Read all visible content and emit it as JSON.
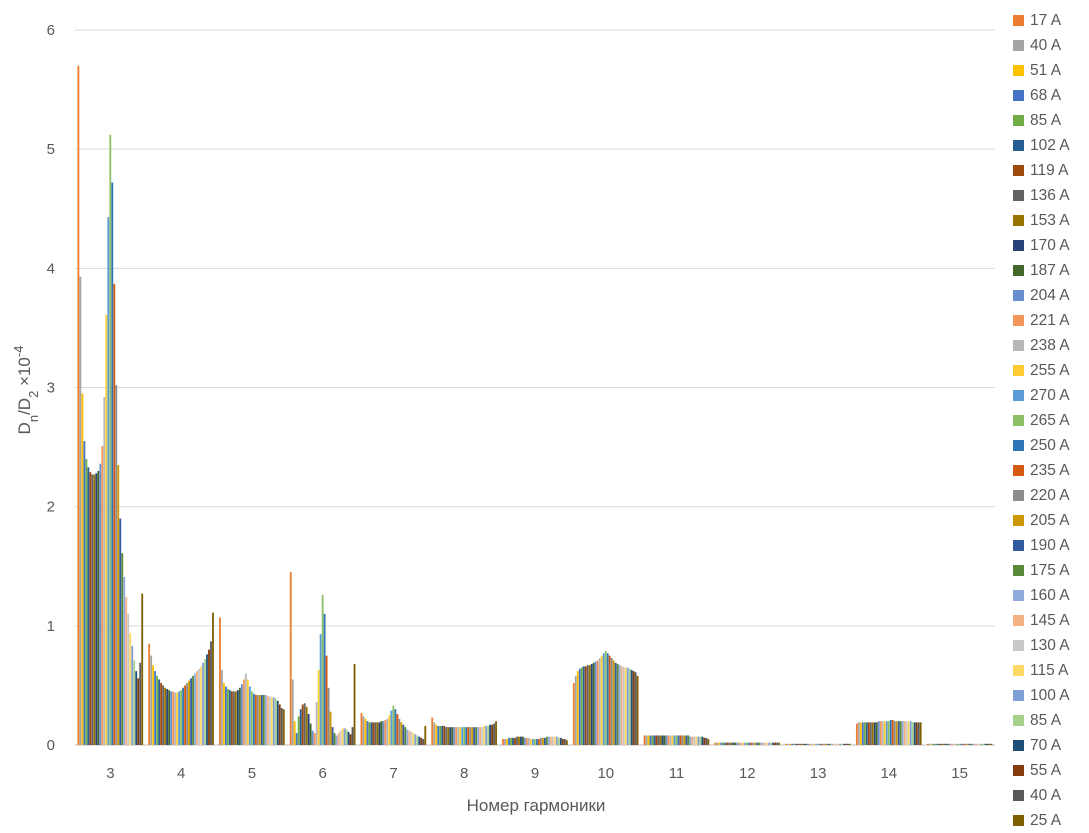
{
  "chart_data": {
    "type": "bar",
    "title": "",
    "xlabel": "Номер гармоники",
    "ylabel_main": "D",
    "ylabel_sub1": "n",
    "ylabel_mid": "/D",
    "ylabel_sub2": "2",
    "ylabel_times": " ×10",
    "ylabel_exp": "-4",
    "ylim": [
      0,
      6
    ],
    "yticks": [
      "0",
      "1",
      "2",
      "3",
      "4",
      "5",
      "6"
    ],
    "categories": [
      "3",
      "4",
      "5",
      "6",
      "7",
      "8",
      "9",
      "10",
      "11",
      "12",
      "13",
      "14",
      "15"
    ],
    "grid": true,
    "legend_position": "right",
    "legend": [
      {
        "name": "17 A",
        "color": "#ED7D31"
      },
      {
        "name": "40 A",
        "color": "#A5A5A5"
      },
      {
        "name": "51 A",
        "color": "#FFC000"
      },
      {
        "name": "68 A",
        "color": "#4472C4"
      },
      {
        "name": "85 A",
        "color": "#70AD47"
      },
      {
        "name": "102 A",
        "color": "#255E91"
      },
      {
        "name": "119 A",
        "color": "#9E480E"
      },
      {
        "name": "136 A",
        "color": "#636363"
      },
      {
        "name": "153 A",
        "color": "#997300"
      },
      {
        "name": "170 A",
        "color": "#264478"
      },
      {
        "name": "187 A",
        "color": "#43682B"
      },
      {
        "name": "204 A",
        "color": "#698ED0"
      },
      {
        "name": "221 A",
        "color": "#F1975A"
      },
      {
        "name": "238 A",
        "color": "#B7B7B7"
      },
      {
        "name": "255 A",
        "color": "#FFCD33"
      },
      {
        "name": "270 A",
        "color": "#5B9BD5"
      },
      {
        "name": "265 A",
        "color": "#8CC168"
      },
      {
        "name": "250 A",
        "color": "#2E75B6"
      },
      {
        "name": "235 A",
        "color": "#D55A11"
      },
      {
        "name": "220 A",
        "color": "#8C8C8C"
      },
      {
        "name": "205 A",
        "color": "#CC9A00"
      },
      {
        "name": "190 A",
        "color": "#335AA1"
      },
      {
        "name": "175 A",
        "color": "#5A8A39"
      },
      {
        "name": "160 A",
        "color": "#8FAADC"
      },
      {
        "name": "145 A",
        "color": "#F4B183"
      },
      {
        "name": "130 A",
        "color": "#C9C9C9"
      },
      {
        "name": "115 A",
        "color": "#FFD966"
      },
      {
        "name": "100 A",
        "color": "#7F9FD5"
      },
      {
        "name": "85 A",
        "color": "#A9D18E"
      },
      {
        "name": "70 A",
        "color": "#1F4E79"
      },
      {
        "name": "55 A",
        "color": "#843C0C"
      },
      {
        "name": "40 A",
        "color": "#595959"
      },
      {
        "name": "25 A",
        "color": "#7F6000"
      }
    ],
    "series_values_by_category": {
      "3": [
        5.7,
        3.93,
        2.95,
        2.55,
        2.4,
        2.33,
        2.29,
        2.27,
        2.27,
        2.28,
        2.3,
        2.36,
        2.51,
        2.92,
        3.61,
        4.43,
        5.12,
        4.72,
        3.87,
        3.02,
        2.35,
        1.9,
        1.61,
        1.41,
        1.24,
        1.1,
        0.94,
        0.83,
        0.71,
        0.62,
        0.56,
        0.69,
        1.27
      ],
      "4": [
        0.85,
        0.75,
        0.67,
        0.62,
        0.58,
        0.55,
        0.52,
        0.5,
        0.48,
        0.47,
        0.46,
        0.45,
        0.45,
        0.44,
        0.44,
        0.45,
        0.46,
        0.48,
        0.5,
        0.52,
        0.54,
        0.56,
        0.58,
        0.6,
        0.62,
        0.64,
        0.66,
        0.69,
        0.72,
        0.76,
        0.8,
        0.87,
        1.11
      ],
      "5": [
        1.07,
        0.63,
        0.52,
        0.49,
        0.47,
        0.46,
        0.45,
        0.45,
        0.45,
        0.46,
        0.48,
        0.51,
        0.55,
        0.6,
        0.55,
        0.49,
        0.45,
        0.43,
        0.42,
        0.42,
        0.42,
        0.42,
        0.42,
        0.42,
        0.41,
        0.41,
        0.4,
        0.4,
        0.39,
        0.37,
        0.34,
        0.31,
        0.3
      ],
      "6": [
        1.45,
        0.55,
        0.2,
        0.1,
        0.24,
        0.3,
        0.34,
        0.35,
        0.32,
        0.26,
        0.18,
        0.12,
        0.1,
        0.36,
        0.63,
        0.93,
        1.26,
        1.1,
        0.75,
        0.48,
        0.28,
        0.15,
        0.1,
        0.08,
        0.1,
        0.12,
        0.14,
        0.14,
        0.13,
        0.11,
        0.09,
        0.15,
        0.68
      ],
      "7": [
        0.27,
        0.24,
        0.22,
        0.2,
        0.19,
        0.19,
        0.19,
        0.19,
        0.19,
        0.19,
        0.2,
        0.2,
        0.21,
        0.22,
        0.25,
        0.29,
        0.33,
        0.3,
        0.26,
        0.22,
        0.19,
        0.17,
        0.15,
        0.13,
        0.12,
        0.11,
        0.1,
        0.09,
        0.08,
        0.07,
        0.06,
        0.05,
        0.16
      ],
      "8": [
        0.23,
        0.19,
        0.17,
        0.16,
        0.16,
        0.16,
        0.16,
        0.15,
        0.15,
        0.15,
        0.15,
        0.15,
        0.15,
        0.15,
        0.15,
        0.15,
        0.15,
        0.15,
        0.15,
        0.15,
        0.15,
        0.15,
        0.15,
        0.15,
        0.15,
        0.15,
        0.16,
        0.16,
        0.16,
        0.17,
        0.17,
        0.18,
        0.2
      ],
      "9": [
        0.05,
        0.05,
        0.05,
        0.06,
        0.06,
        0.06,
        0.06,
        0.07,
        0.07,
        0.07,
        0.07,
        0.06,
        0.06,
        0.06,
        0.05,
        0.05,
        0.05,
        0.05,
        0.05,
        0.06,
        0.06,
        0.06,
        0.07,
        0.07,
        0.07,
        0.07,
        0.07,
        0.07,
        0.06,
        0.06,
        0.05,
        0.05,
        0.04
      ],
      "10": [
        0.52,
        0.58,
        0.62,
        0.64,
        0.65,
        0.66,
        0.66,
        0.67,
        0.67,
        0.68,
        0.69,
        0.7,
        0.71,
        0.73,
        0.75,
        0.77,
        0.79,
        0.77,
        0.75,
        0.73,
        0.71,
        0.69,
        0.68,
        0.67,
        0.66,
        0.66,
        0.65,
        0.65,
        0.64,
        0.63,
        0.62,
        0.61,
        0.58
      ],
      "11": [
        0.08,
        0.08,
        0.08,
        0.08,
        0.08,
        0.08,
        0.08,
        0.08,
        0.08,
        0.08,
        0.08,
        0.08,
        0.08,
        0.08,
        0.08,
        0.08,
        0.08,
        0.08,
        0.08,
        0.08,
        0.08,
        0.08,
        0.08,
        0.07,
        0.07,
        0.07,
        0.07,
        0.07,
        0.07,
        0.07,
        0.06,
        0.06,
        0.05
      ],
      "12": [
        0.02,
        0.02,
        0.02,
        0.02,
        0.02,
        0.02,
        0.02,
        0.02,
        0.02,
        0.02,
        0.02,
        0.02,
        0.02,
        0.02,
        0.02,
        0.02,
        0.02,
        0.02,
        0.02,
        0.02,
        0.02,
        0.02,
        0.02,
        0.02,
        0.02,
        0.02,
        0.02,
        0.02,
        0.02,
        0.02,
        0.02,
        0.02,
        0.02
      ],
      "13": [
        0.01,
        0.01,
        0.01,
        0.01,
        0.01,
        0.01,
        0.01,
        0.01,
        0.01,
        0.01,
        0.01,
        0.01,
        0.01,
        0.01,
        0.01,
        0.01,
        0.01,
        0.01,
        0.01,
        0.01,
        0.01,
        0.01,
        0.01,
        0.01,
        0.01,
        0.01,
        0.01,
        0.01,
        0.01,
        0.01,
        0.01,
        0.01,
        0.01
      ],
      "14": [
        0.18,
        0.19,
        0.19,
        0.19,
        0.19,
        0.19,
        0.19,
        0.19,
        0.19,
        0.19,
        0.19,
        0.2,
        0.2,
        0.2,
        0.2,
        0.2,
        0.2,
        0.21,
        0.21,
        0.2,
        0.2,
        0.2,
        0.2,
        0.2,
        0.2,
        0.2,
        0.2,
        0.2,
        0.19,
        0.19,
        0.19,
        0.19,
        0.19
      ],
      "15": [
        0.01,
        0.01,
        0.01,
        0.01,
        0.01,
        0.01,
        0.01,
        0.01,
        0.01,
        0.01,
        0.01,
        0.01,
        0.01,
        0.01,
        0.01,
        0.01,
        0.01,
        0.01,
        0.01,
        0.01,
        0.01,
        0.01,
        0.01,
        0.01,
        0.01,
        0.01,
        0.01,
        0.01,
        0.01,
        0.01,
        0.01,
        0.01,
        0.01
      ]
    }
  }
}
